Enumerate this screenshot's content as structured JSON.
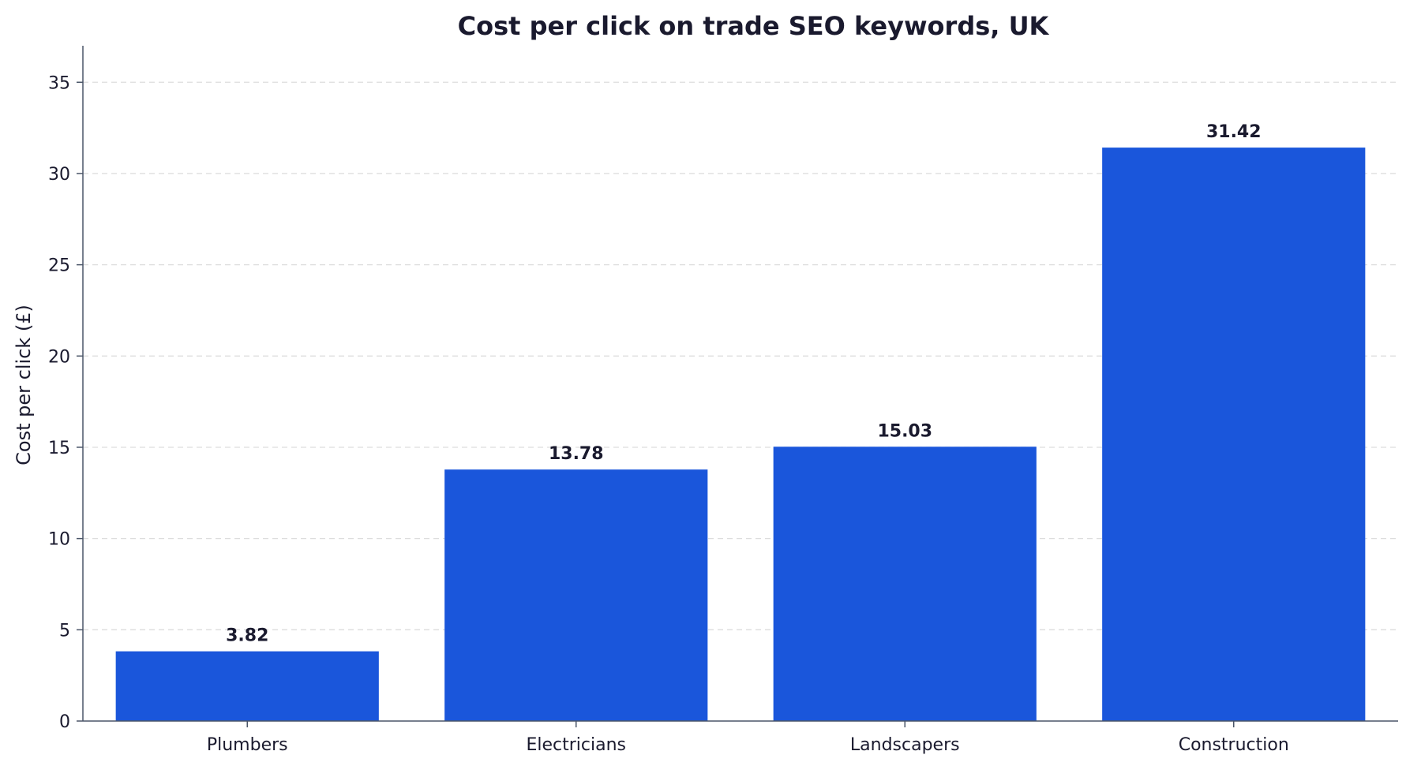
{
  "chart_data": {
    "type": "bar",
    "title": "Cost per click on trade SEO keywords, UK",
    "xlabel": "",
    "ylabel": "Cost per click (£)",
    "categories": [
      "Plumbers",
      "Electricians",
      "Landscapers",
      "Construction"
    ],
    "values": [
      3.82,
      13.78,
      15.03,
      31.42
    ],
    "value_labels": [
      "3.82",
      "13.78",
      "15.03",
      "31.42"
    ],
    "ylim": [
      0,
      37
    ],
    "yticks": [
      0,
      5,
      10,
      15,
      20,
      25,
      30,
      35
    ],
    "grid": "horizontal, dashed",
    "legend": "none",
    "colors": {
      "bar": "#1a56db",
      "text": "#1a1a2e",
      "axis": "#4a5568",
      "grid": "#dddddd"
    }
  }
}
